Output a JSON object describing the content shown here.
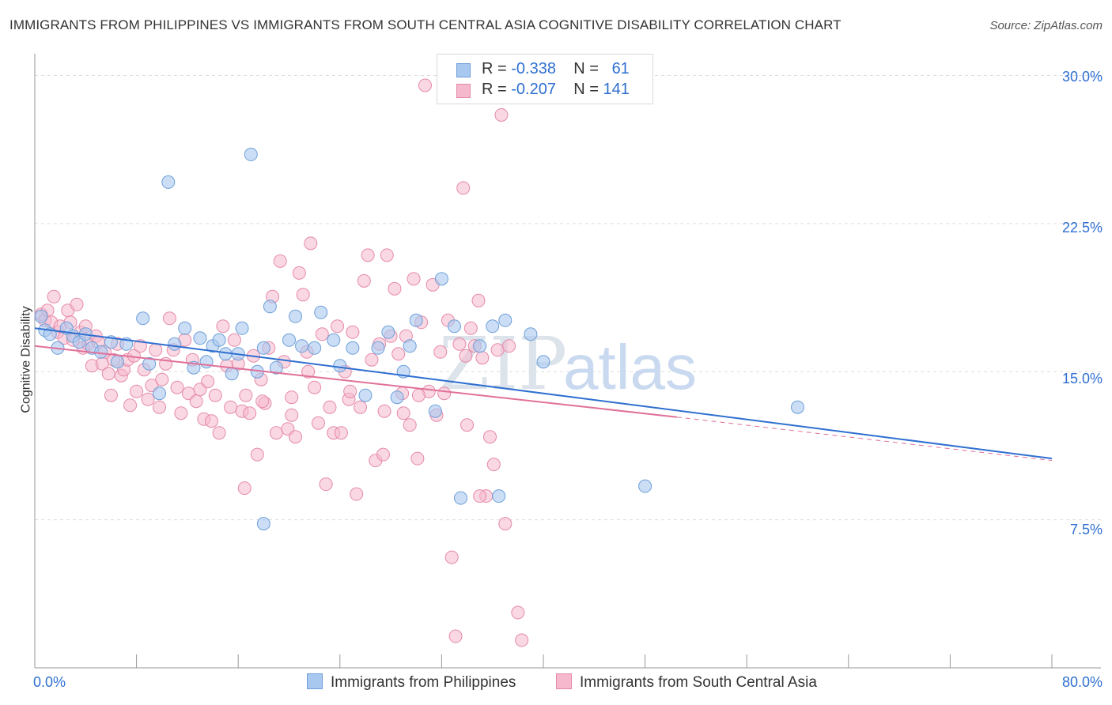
{
  "header": {
    "title": "IMMIGRANTS FROM PHILIPPINES VS IMMIGRANTS FROM SOUTH CENTRAL ASIA COGNITIVE DISABILITY CORRELATION CHART",
    "source": "Source: ZipAtlas.com"
  },
  "watermark": "ZIPatlas",
  "legend": {
    "rows": [
      {
        "r_label": "R =",
        "r_value": "-0.338",
        "n_label": "N =",
        "n_value": "61"
      },
      {
        "r_label": "R =",
        "r_value": "-0.207",
        "n_label": "N =",
        "n_value": "141"
      }
    ]
  },
  "bottom_legend": [
    {
      "label": "Immigrants from Philippines"
    },
    {
      "label": "Immigrants from South Central Asia"
    }
  ],
  "axes": {
    "x_min_label": "0.0%",
    "x_max_label": "80.0%",
    "y_title": "Cognitive Disability",
    "y_ticks": [
      "30.0%",
      "22.5%",
      "15.0%",
      "7.5%"
    ]
  },
  "colors": {
    "blue_fill": "#a9c8f0",
    "blue_stroke": "#6e9fd8",
    "blue_line": "#2f6fd0",
    "pink_fill": "#f5b8cc",
    "pink_stroke": "#e58aa9",
    "pink_line": "#e0709a",
    "grid": "#dddddd",
    "accent_text": "#2f6fd0"
  },
  "chart_data": {
    "type": "scatter",
    "title": "IMMIGRANTS FROM PHILIPPINES VS IMMIGRANTS FROM SOUTH CENTRAL ASIA COGNITIVE DISABILITY CORRELATION CHART",
    "xlabel": "",
    "ylabel": "Cognitive Disability",
    "xlim": [
      0,
      80
    ],
    "ylim": [
      0,
      30.7
    ],
    "y_ticks": [
      7.5,
      15.0,
      22.5,
      30.0
    ],
    "x_tick_marks": [
      0,
      8,
      16,
      24,
      32,
      40,
      48,
      56,
      64,
      72,
      80
    ],
    "grid": "horizontal dashed",
    "legend_position": "top-center",
    "series": [
      {
        "name": "Immigrants from Philippines",
        "R": -0.338,
        "N": 61,
        "trend": {
          "x": [
            0,
            80
          ],
          "y": [
            17.2,
            10.6
          ]
        },
        "points": [
          [
            0.5,
            17.8
          ],
          [
            0.8,
            17.1
          ],
          [
            1.2,
            16.9
          ],
          [
            1.8,
            16.2
          ],
          [
            2.5,
            17.2
          ],
          [
            3.0,
            16.8
          ],
          [
            3.5,
            16.5
          ],
          [
            4.0,
            16.9
          ],
          [
            4.5,
            16.2
          ],
          [
            5.2,
            16.0
          ],
          [
            6.0,
            16.5
          ],
          [
            6.5,
            15.5
          ],
          [
            7.2,
            16.4
          ],
          [
            8.5,
            17.7
          ],
          [
            9.0,
            15.4
          ],
          [
            9.8,
            13.9
          ],
          [
            10.5,
            24.6
          ],
          [
            11.0,
            16.4
          ],
          [
            11.8,
            17.2
          ],
          [
            12.5,
            15.2
          ],
          [
            13.0,
            16.7
          ],
          [
            13.5,
            15.5
          ],
          [
            14.0,
            16.3
          ],
          [
            14.5,
            16.6
          ],
          [
            15.0,
            15.9
          ],
          [
            15.5,
            14.9
          ],
          [
            16.0,
            15.9
          ],
          [
            16.3,
            17.2
          ],
          [
            17.0,
            26.0
          ],
          [
            17.5,
            15.0
          ],
          [
            18.0,
            16.2
          ],
          [
            18.5,
            18.3
          ],
          [
            19.0,
            15.2
          ],
          [
            20.0,
            16.6
          ],
          [
            20.5,
            17.8
          ],
          [
            21.0,
            16.3
          ],
          [
            22.0,
            16.2
          ],
          [
            22.5,
            18.0
          ],
          [
            23.5,
            16.6
          ],
          [
            24.0,
            15.3
          ],
          [
            25.0,
            16.2
          ],
          [
            26.0,
            13.8
          ],
          [
            27.0,
            16.2
          ],
          [
            27.8,
            17.0
          ],
          [
            28.5,
            13.7
          ],
          [
            29.0,
            15.0
          ],
          [
            29.5,
            16.3
          ],
          [
            30.0,
            17.6
          ],
          [
            31.5,
            13.0
          ],
          [
            32.0,
            19.7
          ],
          [
            33.0,
            17.3
          ],
          [
            33.5,
            8.6
          ],
          [
            35.0,
            16.3
          ],
          [
            36.0,
            17.3
          ],
          [
            36.5,
            8.7
          ],
          [
            37.0,
            17.6
          ],
          [
            39.0,
            16.9
          ],
          [
            40.0,
            15.5
          ],
          [
            48.0,
            9.2
          ],
          [
            60.0,
            13.2
          ],
          [
            18.0,
            7.3
          ]
        ]
      },
      {
        "name": "Immigrants from South Central Asia",
        "R": -0.207,
        "N": 141,
        "trend": {
          "x": [
            0,
            50.5
          ],
          "y": [
            16.3,
            12.7
          ]
        },
        "trend_dashed": {
          "x": [
            50.5,
            80
          ],
          "y": [
            12.7,
            10.5
          ]
        },
        "points": [
          [
            0.5,
            17.9
          ],
          [
            0.8,
            17.6
          ],
          [
            1.0,
            18.1
          ],
          [
            1.3,
            17.5
          ],
          [
            1.5,
            18.8
          ],
          [
            1.8,
            17.0
          ],
          [
            2.0,
            17.3
          ],
          [
            2.3,
            16.7
          ],
          [
            2.6,
            18.1
          ],
          [
            2.8,
            17.5
          ],
          [
            3.0,
            16.6
          ],
          [
            3.3,
            18.4
          ],
          [
            3.6,
            17.0
          ],
          [
            3.8,
            16.2
          ],
          [
            4.0,
            17.3
          ],
          [
            4.2,
            16.4
          ],
          [
            4.5,
            15.3
          ],
          [
            4.8,
            16.8
          ],
          [
            5.0,
            16.5
          ],
          [
            5.3,
            15.4
          ],
          [
            5.5,
            16.0
          ],
          [
            5.8,
            14.9
          ],
          [
            6.0,
            13.8
          ],
          [
            6.2,
            15.6
          ],
          [
            6.5,
            16.4
          ],
          [
            6.8,
            14.8
          ],
          [
            7.0,
            15.1
          ],
          [
            7.3,
            15.6
          ],
          [
            7.5,
            13.3
          ],
          [
            7.8,
            15.8
          ],
          [
            8.0,
            14.0
          ],
          [
            8.3,
            16.3
          ],
          [
            8.6,
            15.1
          ],
          [
            8.9,
            13.6
          ],
          [
            9.2,
            14.3
          ],
          [
            9.5,
            16.1
          ],
          [
            9.8,
            13.2
          ],
          [
            10.0,
            14.6
          ],
          [
            10.3,
            15.4
          ],
          [
            10.6,
            17.7
          ],
          [
            10.9,
            16.1
          ],
          [
            11.2,
            14.2
          ],
          [
            11.5,
            12.9
          ],
          [
            11.8,
            16.6
          ],
          [
            12.1,
            13.9
          ],
          [
            12.4,
            15.6
          ],
          [
            12.7,
            13.5
          ],
          [
            13.0,
            14.1
          ],
          [
            13.3,
            12.6
          ],
          [
            13.6,
            14.5
          ],
          [
            13.9,
            12.5
          ],
          [
            14.2,
            13.8
          ],
          [
            14.5,
            11.9
          ],
          [
            14.8,
            17.3
          ],
          [
            15.1,
            15.3
          ],
          [
            15.4,
            13.2
          ],
          [
            15.7,
            16.6
          ],
          [
            16.0,
            15.4
          ],
          [
            16.3,
            13.0
          ],
          [
            16.6,
            13.8
          ],
          [
            16.9,
            12.9
          ],
          [
            17.2,
            15.8
          ],
          [
            17.5,
            10.8
          ],
          [
            17.8,
            14.6
          ],
          [
            18.1,
            13.4
          ],
          [
            18.4,
            16.2
          ],
          [
            18.7,
            18.8
          ],
          [
            19.0,
            11.9
          ],
          [
            19.3,
            20.6
          ],
          [
            19.6,
            15.5
          ],
          [
            19.9,
            12.1
          ],
          [
            20.2,
            13.7
          ],
          [
            20.5,
            11.7
          ],
          [
            20.8,
            20.0
          ],
          [
            21.1,
            18.9
          ],
          [
            21.4,
            16.0
          ],
          [
            21.7,
            21.5
          ],
          [
            22.0,
            14.2
          ],
          [
            22.3,
            12.4
          ],
          [
            22.6,
            16.9
          ],
          [
            22.9,
            9.3
          ],
          [
            23.2,
            13.2
          ],
          [
            23.5,
            11.9
          ],
          [
            23.8,
            17.3
          ],
          [
            24.1,
            11.9
          ],
          [
            24.4,
            15.0
          ],
          [
            24.7,
            13.6
          ],
          [
            25.0,
            17.0
          ],
          [
            25.3,
            8.8
          ],
          [
            25.6,
            13.2
          ],
          [
            25.9,
            19.6
          ],
          [
            26.2,
            20.9
          ],
          [
            26.5,
            15.6
          ],
          [
            26.8,
            10.5
          ],
          [
            27.1,
            16.4
          ],
          [
            27.4,
            10.8
          ],
          [
            27.7,
            20.9
          ],
          [
            28.0,
            16.8
          ],
          [
            28.3,
            19.2
          ],
          [
            28.6,
            15.9
          ],
          [
            28.9,
            13.9
          ],
          [
            29.2,
            16.8
          ],
          [
            29.5,
            12.3
          ],
          [
            29.8,
            19.7
          ],
          [
            30.1,
            10.6
          ],
          [
            30.4,
            17.5
          ],
          [
            30.7,
            29.5
          ],
          [
            31.0,
            14.0
          ],
          [
            31.3,
            19.4
          ],
          [
            31.6,
            12.8
          ],
          [
            31.9,
            16.0
          ],
          [
            32.2,
            13.9
          ],
          [
            32.5,
            17.6
          ],
          [
            32.8,
            5.6
          ],
          [
            33.1,
            1.6
          ],
          [
            33.4,
            16.4
          ],
          [
            33.7,
            24.3
          ],
          [
            34.0,
            12.3
          ],
          [
            34.3,
            17.2
          ],
          [
            34.6,
            16.3
          ],
          [
            34.9,
            18.6
          ],
          [
            35.2,
            15.7
          ],
          [
            35.5,
            8.7
          ],
          [
            35.8,
            11.7
          ],
          [
            36.1,
            10.3
          ],
          [
            36.4,
            16.1
          ],
          [
            36.7,
            28.0
          ],
          [
            37.0,
            7.3
          ],
          [
            37.3,
            16.3
          ],
          [
            38.0,
            2.8
          ],
          [
            38.3,
            1.4
          ],
          [
            20.2,
            12.8
          ],
          [
            21.5,
            15.0
          ],
          [
            17.9,
            13.5
          ],
          [
            16.5,
            9.1
          ],
          [
            24.8,
            14.0
          ],
          [
            27.5,
            13.0
          ],
          [
            29.0,
            12.9
          ],
          [
            30.2,
            13.8
          ],
          [
            33.9,
            15.8
          ],
          [
            35.0,
            8.7
          ]
        ]
      }
    ]
  }
}
